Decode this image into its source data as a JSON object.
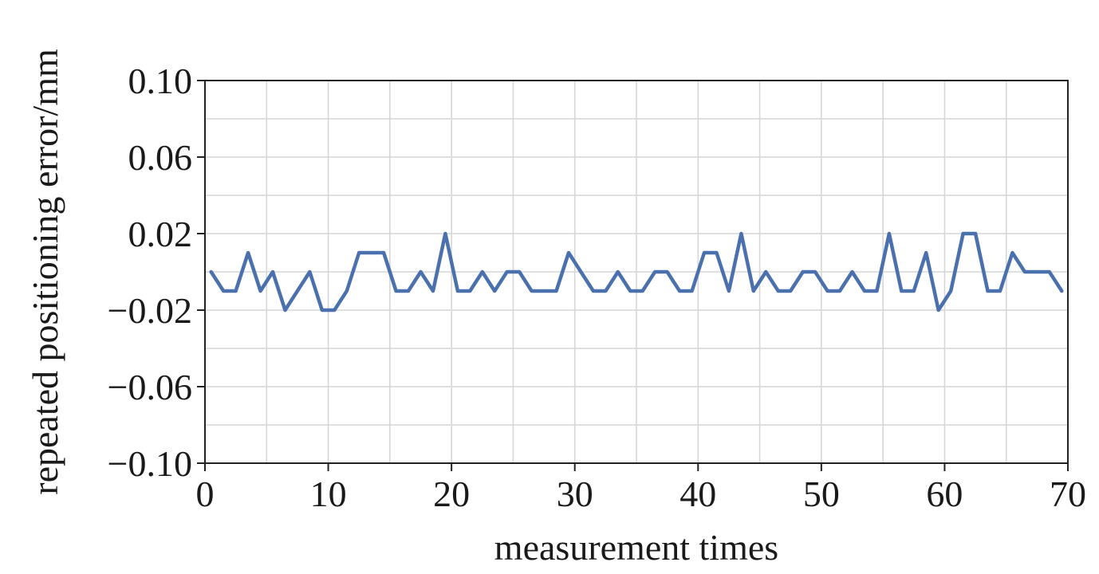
{
  "chart_data": {
    "type": "line",
    "title": "",
    "xlabel": "measurement times",
    "ylabel": "repeated positioning error/mm",
    "xlim": [
      0,
      70
    ],
    "ylim": [
      -0.1,
      0.1
    ],
    "x_ticks": [
      0,
      10,
      20,
      30,
      40,
      50,
      60,
      70
    ],
    "x_tick_labels": [
      "0",
      "10",
      "20",
      "30",
      "40",
      "50",
      "60",
      "70"
    ],
    "y_ticks": [
      0.1,
      0.06,
      0.02,
      -0.02,
      -0.06,
      -0.1
    ],
    "y_tick_labels": [
      "0.10",
      "0.06",
      "0.02",
      "−0.02",
      "−0.06",
      "−0.10"
    ],
    "grid": true,
    "legend": "none",
    "series": [
      {
        "color": "#4a70ad",
        "x": [
          0.5,
          1.5,
          2.5,
          3.5,
          4.5,
          5.5,
          6.5,
          7.5,
          8.5,
          9.5,
          10.5,
          11.5,
          12.5,
          13.5,
          14.5,
          15.5,
          16.5,
          17.5,
          18.5,
          19.5,
          20.5,
          21.5,
          22.5,
          23.5,
          24.5,
          25.5,
          26.5,
          27.5,
          28.5,
          29.5,
          30.5,
          31.5,
          32.5,
          33.5,
          34.5,
          35.5,
          36.5,
          37.5,
          38.5,
          39.5,
          40.5,
          41.5,
          42.5,
          43.5,
          44.5,
          45.5,
          46.5,
          47.5,
          48.5,
          49.5,
          50.5,
          51.5,
          52.5,
          53.5,
          54.5,
          55.5,
          56.5,
          57.5,
          58.5,
          59.5,
          60.5,
          61.5,
          62.5,
          63.5,
          64.5,
          65.5,
          66.5,
          67.5,
          68.5,
          69.5
        ],
        "values": [
          0,
          -0.01,
          -0.01,
          0.01,
          -0.01,
          0,
          -0.02,
          -0.01,
          0,
          -0.02,
          -0.02,
          -0.01,
          0.01,
          0.01,
          0.01,
          -0.01,
          -0.01,
          0,
          -0.01,
          0.02,
          -0.01,
          -0.01,
          0,
          -0.01,
          0,
          0,
          -0.01,
          -0.01,
          -0.01,
          0.01,
          0,
          -0.01,
          -0.01,
          0,
          -0.01,
          -0.01,
          0,
          0,
          -0.01,
          -0.01,
          0.01,
          0.01,
          -0.01,
          0.02,
          -0.01,
          0,
          -0.01,
          -0.01,
          0,
          0,
          -0.01,
          -0.01,
          0,
          -0.01,
          -0.01,
          0.02,
          -0.01,
          -0.01,
          0.01,
          -0.02,
          -0.01,
          0.02,
          0.02,
          -0.01,
          -0.01,
          0.01,
          0,
          0,
          0,
          -0.01
        ]
      }
    ]
  }
}
